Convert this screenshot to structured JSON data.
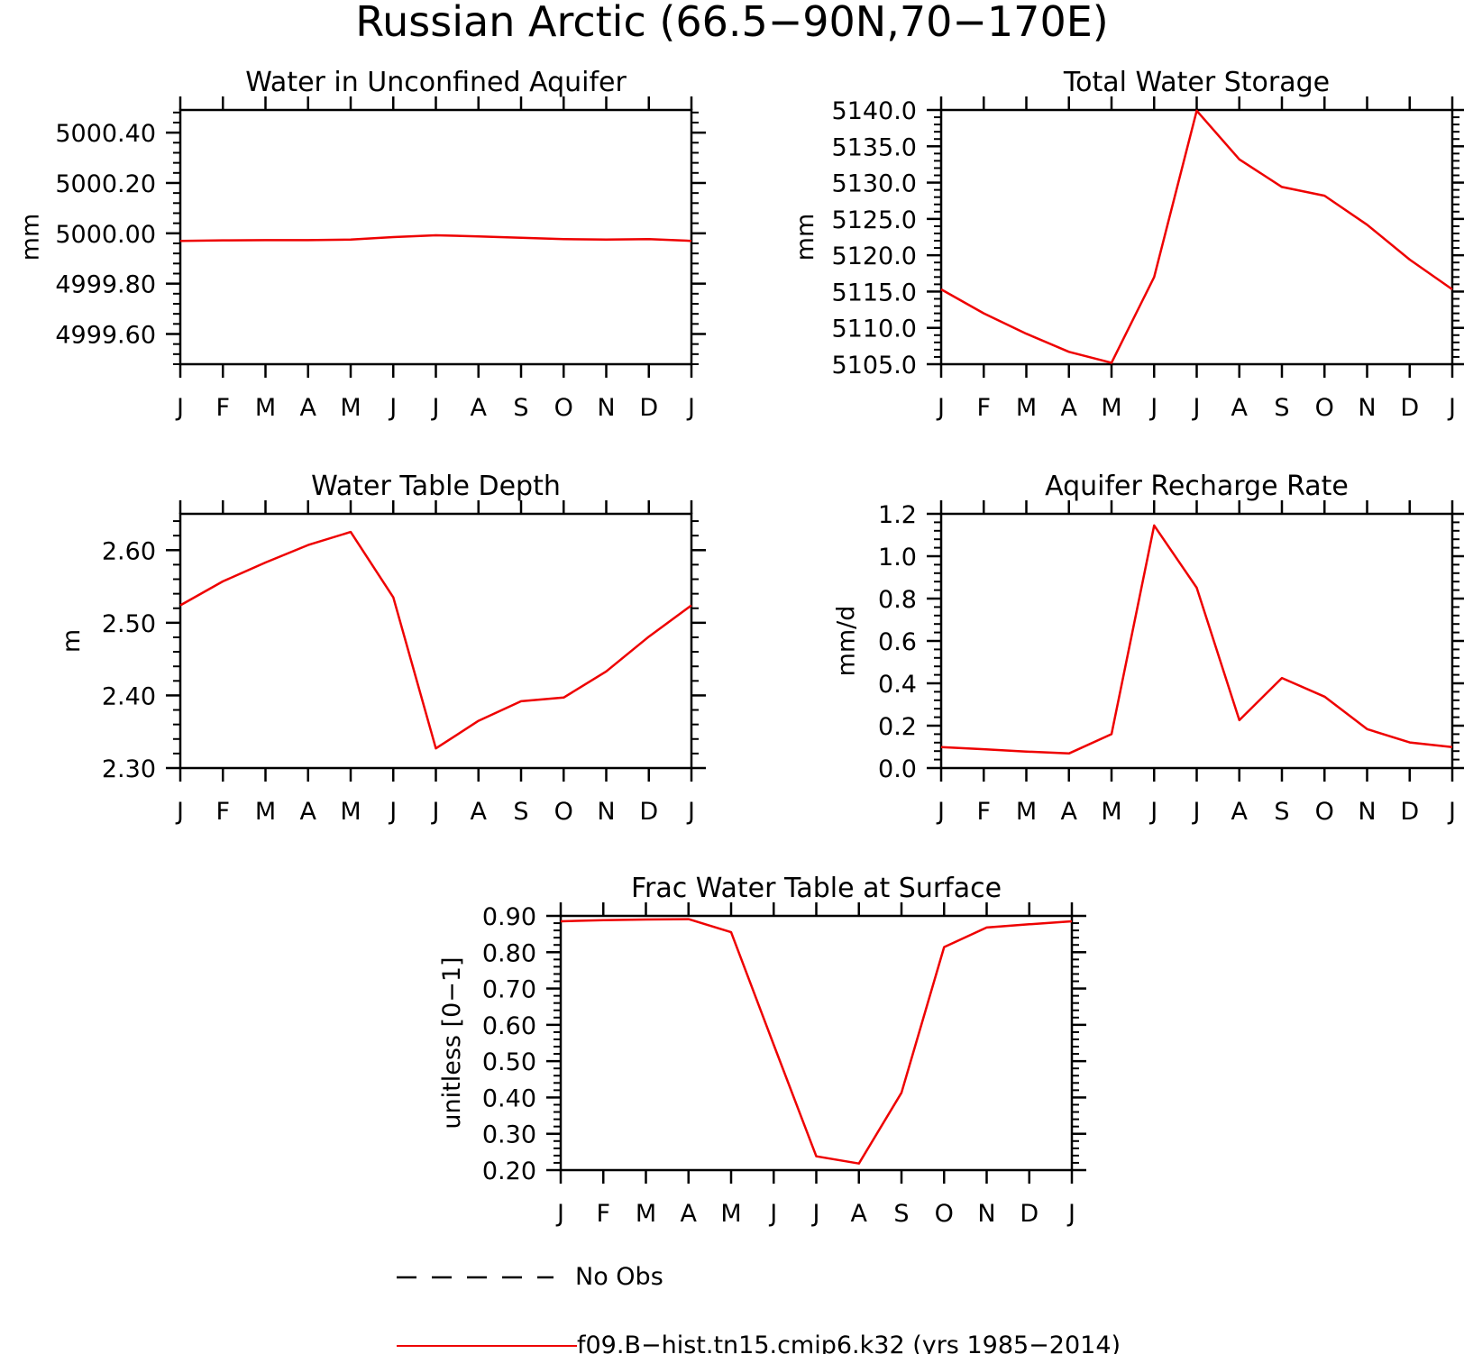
{
  "figure_title": "Russian Arctic (66.5−90N,70−170E)",
  "legend": {
    "obs_label": "No Obs",
    "model_label": "f09.B−hist.tn15.cmip6.k32 (yrs 1985−2014)",
    "model_color": "#ee0000"
  },
  "chart_data": [
    {
      "type": "line",
      "title": "Water in Unconfined Aquifer",
      "ylabel": "mm",
      "x": [
        "J",
        "F",
        "M",
        "A",
        "M",
        "J",
        "J",
        "A",
        "S",
        "O",
        "N",
        "D",
        "J"
      ],
      "ylim": [
        4999.48,
        5000.49
      ],
      "yticks": [
        4999.6,
        4999.8,
        5000.0,
        5000.2,
        5000.4
      ],
      "ytick_labels": [
        "4999.60",
        "4999.80",
        "5000.00",
        "5000.20",
        "5000.40"
      ],
      "minor_step": 0.04,
      "series": [
        {
          "values": [
            4999.97,
            4999.972,
            4999.973,
            4999.973,
            4999.975,
            4999.985,
            4999.992,
            4999.988,
            4999.982,
            4999.977,
            4999.975,
            4999.977,
            4999.97
          ]
        }
      ]
    },
    {
      "type": "line",
      "title": "Total Water Storage",
      "ylabel": "mm",
      "x": [
        "J",
        "F",
        "M",
        "A",
        "M",
        "J",
        "J",
        "A",
        "S",
        "O",
        "N",
        "D",
        "J"
      ],
      "ylim": [
        5105.0,
        5140.0
      ],
      "yticks": [
        5105.0,
        5110.0,
        5115.0,
        5120.0,
        5125.0,
        5130.0,
        5135.0,
        5140.0
      ],
      "ytick_labels": [
        "5105.0",
        "5110.0",
        "5115.0",
        "5120.0",
        "5125.0",
        "5130.0",
        "5135.0",
        "5140.0"
      ],
      "minor_step": 1.0,
      "series": [
        {
          "values": [
            5115.3,
            5112.0,
            5109.2,
            5106.7,
            5105.2,
            5117.0,
            5139.9,
            5133.2,
            5129.4,
            5128.2,
            5124.2,
            5119.4,
            5115.3
          ]
        }
      ]
    },
    {
      "type": "line",
      "title": "Water Table Depth",
      "ylabel": "m",
      "x": [
        "J",
        "F",
        "M",
        "A",
        "M",
        "J",
        "J",
        "A",
        "S",
        "O",
        "N",
        "D",
        "J"
      ],
      "ylim": [
        2.3,
        2.65
      ],
      "yticks": [
        2.3,
        2.4,
        2.5,
        2.6
      ],
      "ytick_labels": [
        "2.30",
        "2.40",
        "2.50",
        "2.60"
      ],
      "minor_step": 0.02,
      "series": [
        {
          "values": [
            2.524,
            2.557,
            2.583,
            2.607,
            2.625,
            2.535,
            2.327,
            2.365,
            2.392,
            2.397,
            2.433,
            2.481,
            2.524
          ]
        }
      ]
    },
    {
      "type": "line",
      "title": "Aquifer Recharge Rate",
      "ylabel": "mm/d",
      "x": [
        "J",
        "F",
        "M",
        "A",
        "M",
        "J",
        "J",
        "A",
        "S",
        "O",
        "N",
        "D",
        "J"
      ],
      "ylim": [
        0.0,
        1.2
      ],
      "yticks": [
        0.0,
        0.2,
        0.4,
        0.6,
        0.8,
        1.0,
        1.2
      ],
      "ytick_labels": [
        "0.0",
        "0.2",
        "0.4",
        "0.6",
        "0.8",
        "1.0",
        "1.2"
      ],
      "minor_step": 0.04,
      "series": [
        {
          "values": [
            0.099,
            0.089,
            0.078,
            0.069,
            0.16,
            1.145,
            0.851,
            0.226,
            0.425,
            0.337,
            0.184,
            0.121,
            0.099
          ]
        }
      ]
    },
    {
      "type": "line",
      "title": "Frac Water Table at Surface",
      "ylabel": "unitless [0−1]",
      "x": [
        "J",
        "F",
        "M",
        "A",
        "M",
        "J",
        "J",
        "A",
        "S",
        "O",
        "N",
        "D",
        "J"
      ],
      "ylim": [
        0.2,
        0.9
      ],
      "yticks": [
        0.2,
        0.3,
        0.4,
        0.5,
        0.6,
        0.7,
        0.8,
        0.9
      ],
      "ytick_labels": [
        "0.20",
        "0.30",
        "0.40",
        "0.50",
        "0.60",
        "0.70",
        "0.80",
        "0.90"
      ],
      "minor_step": 0.02,
      "series": [
        {
          "values": [
            0.885,
            0.888,
            0.89,
            0.891,
            0.855,
            0.545,
            0.238,
            0.218,
            0.413,
            0.814,
            0.868,
            0.877,
            0.885
          ]
        }
      ]
    }
  ]
}
